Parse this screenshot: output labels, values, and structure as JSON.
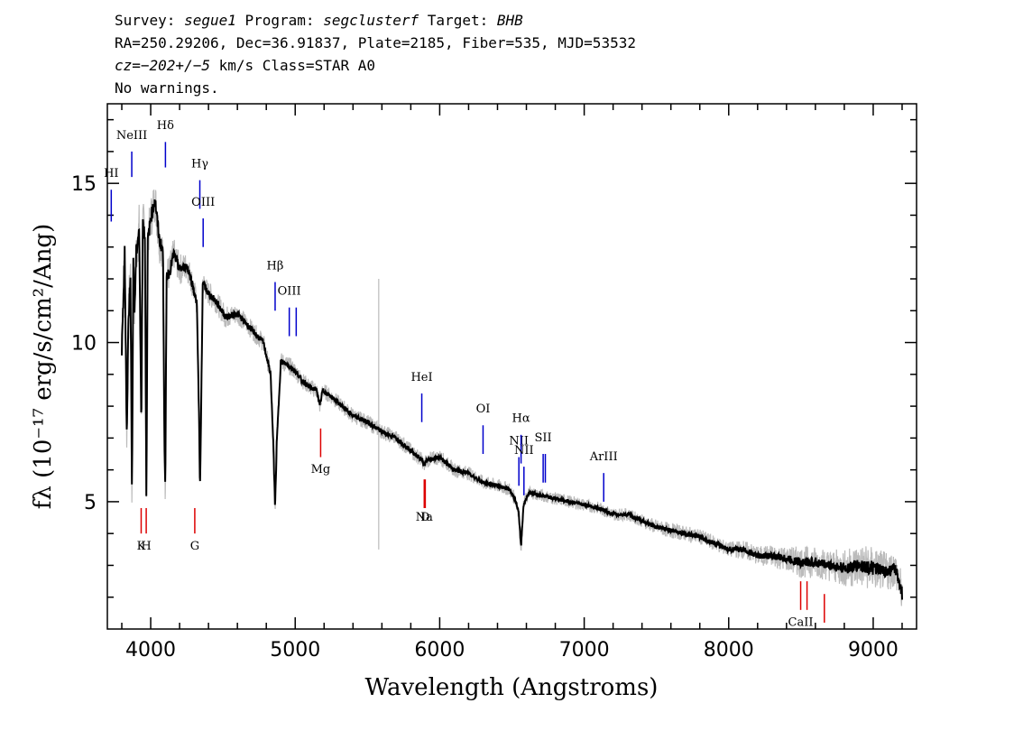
{
  "header": {
    "line1": {
      "survey_label": "Survey: ",
      "survey": "segue1",
      "program_label": " Program: ",
      "program": "segclusterf",
      "target_label": " Target: ",
      "target": "BHB"
    },
    "line2": "RA=250.29206, Dec=36.91837, Plate=2185, Fiber=535, MJD=53532",
    "line3": {
      "cz": "cz=−202+/−5",
      "rest": " km/s Class=STAR A0"
    },
    "line4": "No warnings."
  },
  "chart_data": {
    "type": "line",
    "xlabel": "Wavelength (Angstroms)",
    "ylabel": "fλ (10⁻¹⁷ erg/s/cm²/Ang)",
    "xlim": [
      3700,
      9300
    ],
    "ylim": [
      1,
      17.5
    ],
    "x_ticks": [
      4000,
      5000,
      6000,
      7000,
      8000,
      9000
    ],
    "x_tick_labels": [
      "4000",
      "5000",
      "6000",
      "7000",
      "8000",
      "9000"
    ],
    "y_ticks": [
      5,
      10,
      15
    ],
    "y_tick_labels": [
      "5",
      "10",
      "15"
    ],
    "colors": {
      "flux": "#000000",
      "error": "#bbbbbb",
      "emission": "#0000cc",
      "absorption": "#dd0000"
    },
    "series": [
      {
        "role": "flux",
        "x": [
          3800,
          3820,
          3835,
          3845,
          3860,
          3870,
          3880,
          3888,
          3900,
          3920,
          3935,
          3945,
          3960,
          3970,
          3980,
          4000,
          4030,
          4060,
          4085,
          4095,
          4101,
          4110,
          4130,
          4160,
          4200,
          4250,
          4280,
          4320,
          4335,
          4341,
          4348,
          4360,
          4390,
          4450,
          4520,
          4600,
          4700,
          4780,
          4830,
          4850,
          4861,
          4872,
          4900,
          4950,
          5000,
          5050,
          5100,
          5150,
          5170,
          5190,
          5250,
          5300,
          5400,
          5500,
          5600,
          5700,
          5800,
          5880,
          5893,
          5905,
          6000,
          6100,
          6200,
          6300,
          6400,
          6480,
          6520,
          6545,
          6563,
          6580,
          6620,
          6700,
          6800,
          6900,
          7000,
          7100,
          7200,
          7300,
          7400,
          7500,
          7600,
          7700,
          7800,
          7900,
          8000,
          8100,
          8200,
          8300,
          8400,
          8500,
          8600,
          8700,
          8800,
          8900,
          9000,
          9100,
          9150,
          9180,
          9200
        ],
        "y": [
          9.7,
          12.8,
          7.0,
          10.5,
          12.2,
          5.4,
          12.6,
          11.0,
          12.8,
          13.6,
          7.5,
          13.8,
          13.3,
          5.3,
          13.2,
          13.9,
          14.5,
          13.2,
          12.9,
          7.0,
          5.3,
          12.1,
          12.2,
          12.8,
          12.3,
          12.4,
          12.0,
          11.2,
          7.5,
          5.3,
          7.5,
          11.9,
          11.6,
          11.3,
          10.8,
          10.9,
          10.4,
          10.0,
          9.0,
          6.6,
          4.8,
          6.8,
          9.4,
          9.3,
          9.1,
          8.8,
          8.6,
          8.5,
          8.0,
          8.5,
          8.3,
          8.1,
          7.7,
          7.5,
          7.2,
          7.0,
          6.6,
          6.3,
          6.1,
          6.3,
          6.4,
          6.0,
          5.9,
          5.6,
          5.5,
          5.4,
          5.1,
          4.7,
          3.6,
          4.9,
          5.3,
          5.2,
          5.1,
          5.0,
          4.9,
          4.8,
          4.6,
          4.6,
          4.4,
          4.2,
          4.1,
          4.0,
          3.9,
          3.7,
          3.5,
          3.5,
          3.3,
          3.3,
          3.2,
          3.1,
          3.1,
          3.0,
          2.9,
          3.0,
          2.9,
          2.8,
          2.9,
          2.5,
          2.1
        ],
        "noise": [
          0.4,
          0.5,
          0.5,
          0.5,
          0.4,
          0.4,
          0.4,
          0.4,
          0.4,
          0.4,
          0.4,
          0.4,
          0.35,
          0.35,
          0.35,
          0.35,
          0.35,
          0.35,
          0.3,
          0.3,
          0.3,
          0.3,
          0.3,
          0.25,
          0.25,
          0.22,
          0.22,
          0.2,
          0.2,
          0.2,
          0.2,
          0.2,
          0.2,
          0.18,
          0.18,
          0.16,
          0.15,
          0.15,
          0.15,
          0.15,
          0.15,
          0.15,
          0.15,
          0.14,
          0.14,
          0.13,
          0.13,
          0.13,
          0.13,
          0.13,
          0.12,
          0.12,
          0.12,
          0.12,
          0.12,
          0.12,
          0.12,
          0.12,
          0.12,
          0.12,
          0.12,
          0.11,
          0.11,
          0.11,
          0.11,
          0.11,
          0.11,
          0.11,
          0.11,
          0.11,
          0.1,
          0.1,
          0.1,
          0.1,
          0.1,
          0.1,
          0.1,
          0.1,
          0.1,
          0.12,
          0.12,
          0.12,
          0.12,
          0.12,
          0.12,
          0.15,
          0.15,
          0.18,
          0.2,
          0.25,
          0.25,
          0.25,
          0.3,
          0.35,
          0.35,
          0.3,
          0.3,
          0.3,
          0.3
        ]
      }
    ],
    "spike": {
      "x": 5578,
      "y_range": [
        3.5,
        12.0
      ]
    },
    "emission_lines": [
      {
        "label": "HI",
        "x": 3727,
        "y": [
          13.8,
          14.8
        ],
        "label_y": 15.2
      },
      {
        "label": "NeIII",
        "x": 3869,
        "y": [
          15.2,
          16.0
        ],
        "label_y": 16.4
      },
      {
        "label": "Hδ",
        "x": 4102,
        "y": [
          15.5,
          16.3
        ],
        "label_y": 16.7
      },
      {
        "label": "Hγ",
        "x": 4340,
        "y": [
          14.2,
          15.1
        ],
        "label_y": 15.5
      },
      {
        "label": "OIII",
        "x": 4363,
        "y": [
          13.0,
          13.9
        ],
        "label_y": 14.3
      },
      {
        "label": "Hβ",
        "x": 4861,
        "y": [
          11.0,
          11.9
        ],
        "label_y": 12.3
      },
      {
        "label": "OIII",
        "x": 4959,
        "y": [
          10.2,
          11.1
        ],
        "label_y": 11.5
      },
      {
        "label": "",
        "x": 5007,
        "y": [
          10.2,
          11.1
        ]
      },
      {
        "label": "HeI",
        "x": 5876,
        "y": [
          7.5,
          8.4
        ],
        "label_y": 8.8
      },
      {
        "label": "OI",
        "x": 6300,
        "y": [
          6.5,
          7.4
        ],
        "label_y": 7.8
      },
      {
        "label": "NII",
        "x": 6548,
        "y": [
          5.5,
          6.4
        ],
        "label_y": 6.8
      },
      {
        "label": "Hα",
        "x": 6563,
        "y": [
          6.2,
          7.1
        ],
        "label_y": 7.5
      },
      {
        "label": "NII",
        "x": 6583,
        "y": [
          5.2,
          6.1
        ],
        "label_y": 6.5
      },
      {
        "label": "SII",
        "x": 6716,
        "y": [
          5.6,
          6.5
        ],
        "label_y": 6.9
      },
      {
        "label": "",
        "x": 6731,
        "y": [
          5.6,
          6.5
        ]
      },
      {
        "label": "ArIII",
        "x": 7135,
        "y": [
          5.0,
          5.9
        ],
        "label_y": 6.3
      }
    ],
    "absorption_lines": [
      {
        "label": "K",
        "x": 3934,
        "y": [
          4.0,
          4.8
        ],
        "label_y": 3.5
      },
      {
        "label": "H",
        "x": 3969,
        "y": [
          4.0,
          4.8
        ],
        "label_y": 3.5
      },
      {
        "label": "G",
        "x": 4305,
        "y": [
          4.0,
          4.8
        ],
        "label_y": 3.5
      },
      {
        "label": "Mg",
        "x": 5176,
        "y": [
          6.4,
          7.3
        ],
        "label_y": 5.9
      },
      {
        "label": "Na",
        "x": 5893,
        "y": [
          4.8,
          5.7
        ],
        "label_y": 4.4
      },
      {
        "label": "D",
        "x": 5900,
        "y": [
          4.8,
          5.7
        ],
        "label_y": 4.4
      },
      {
        "label": "CaII",
        "x": 8498,
        "y": [
          1.6,
          2.5
        ],
        "label_y": 1.1
      },
      {
        "label": "",
        "x": 8542,
        "y": [
          1.6,
          2.5
        ]
      },
      {
        "label": "",
        "x": 8662,
        "y": [
          1.2,
          2.1
        ]
      }
    ]
  }
}
